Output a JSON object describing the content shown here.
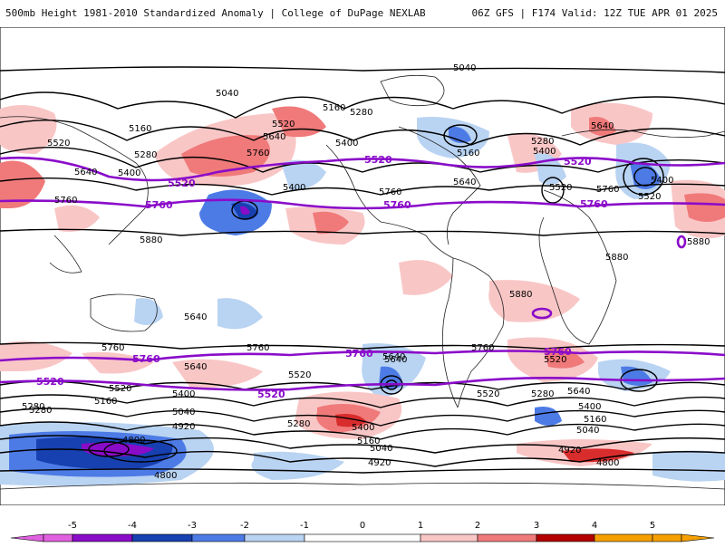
{
  "header": {
    "title": "500mb Height 1981-2010 Standardized Anomaly | College of DuPage NEXLAB",
    "run_info": "06Z GFS | F174 Valid: 12Z TUE APR 01 2025"
  },
  "contour_labels": {
    "black": [
      {
        "text": "5040"
      },
      {
        "text": "5040"
      },
      {
        "text": "5160"
      },
      {
        "text": "5280"
      },
      {
        "text": "5520"
      },
      {
        "text": "5640"
      },
      {
        "text": "5400"
      },
      {
        "text": "5160"
      },
      {
        "text": "5520"
      },
      {
        "text": "5280"
      },
      {
        "text": "5640"
      },
      {
        "text": "5400"
      },
      {
        "text": "5760"
      },
      {
        "text": "5400"
      },
      {
        "text": "5640"
      },
      {
        "text": "5160"
      },
      {
        "text": "5760"
      },
      {
        "text": "5400"
      },
      {
        "text": "5280"
      },
      {
        "text": "5640"
      },
      {
        "text": "5520"
      },
      {
        "text": "5880"
      },
      {
        "text": "5880"
      },
      {
        "text": "5880"
      },
      {
        "text": "5760"
      },
      {
        "text": "5640"
      },
      {
        "text": "5520"
      },
      {
        "text": "5520"
      },
      {
        "text": "5160"
      },
      {
        "text": "5280"
      },
      {
        "text": "5400"
      },
      {
        "text": "5040"
      },
      {
        "text": "4920"
      },
      {
        "text": "4800"
      },
      {
        "text": "4800"
      },
      {
        "text": "5280"
      },
      {
        "text": "5400"
      },
      {
        "text": "5160"
      },
      {
        "text": "5040"
      },
      {
        "text": "4920"
      },
      {
        "text": "5760"
      },
      {
        "text": "5640"
      },
      {
        "text": "5520"
      },
      {
        "text": "5280"
      },
      {
        "text": "5640"
      },
      {
        "text": "5400"
      },
      {
        "text": "5160"
      },
      {
        "text": "5040"
      },
      {
        "text": "4920"
      },
      {
        "text": "4800"
      },
      {
        "text": "5760"
      },
      {
        "text": "5640"
      },
      {
        "text": "5520"
      },
      {
        "text": "5280"
      },
      {
        "text": "5640"
      },
      {
        "text": "5760"
      },
      {
        "text": "5520"
      },
      {
        "text": "5880"
      },
      {
        "text": "5400"
      },
      {
        "text": "5760"
      }
    ],
    "purple": [
      {
        "text": "5520"
      },
      {
        "text": "5520"
      },
      {
        "text": "5760"
      },
      {
        "text": "5760"
      },
      {
        "text": "5520"
      },
      {
        "text": "5760"
      },
      {
        "text": "5760"
      },
      {
        "text": "5760"
      },
      {
        "text": "5760"
      },
      {
        "text": "5520"
      },
      {
        "text": "5520"
      }
    ]
  },
  "colors": {
    "neg5": "#e060e0",
    "neg4": "#8a0cc9",
    "neg3": "#1740b0",
    "neg2": "#4d7be6",
    "neg1": "#b9d3f2",
    "zero": "#ffffff",
    "pos1": "#f9c6c6",
    "pos2": "#f07a7a",
    "pos3": "#d92c2c",
    "pos4": "#b30000",
    "pos5": "#f5a000",
    "contour": "#000000",
    "purple_contour": "#8a0cc9",
    "coast": "#222222"
  },
  "colorbar": {
    "ticks": [
      {
        "label": "-5"
      },
      {
        "label": "-4"
      },
      {
        "label": "-3"
      },
      {
        "label": "-2"
      },
      {
        "label": "-1"
      },
      {
        "label": "0"
      },
      {
        "label": "1"
      },
      {
        "label": "2"
      },
      {
        "label": "3"
      },
      {
        "label": "4"
      },
      {
        "label": "5"
      }
    ]
  }
}
